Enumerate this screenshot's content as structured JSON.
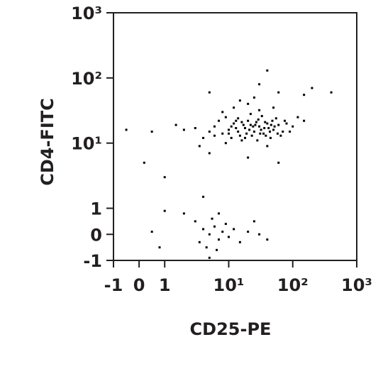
{
  "chart_data": {
    "type": "scatter",
    "x_label": "CD25-PE",
    "y_label": "CD4-FITC",
    "scale": "biexponential",
    "color": "#000000",
    "x": [
      5,
      6,
      8,
      10,
      12,
      15,
      18,
      20,
      25,
      30,
      35,
      40,
      50,
      60,
      4,
      7,
      9,
      11,
      14,
      16,
      22,
      28,
      33,
      45,
      55,
      70,
      3,
      6,
      13,
      17,
      19,
      24,
      27,
      32,
      38,
      42,
      48,
      65,
      80,
      100,
      120,
      150,
      2,
      1.5,
      3.5,
      8,
      12,
      20,
      30,
      40,
      25,
      15,
      50,
      9,
      11,
      14,
      16,
      21,
      23,
      26,
      29,
      36,
      44,
      52,
      10,
      13,
      18,
      22,
      31,
      37,
      46,
      58,
      75,
      90,
      0.5,
      -0.5,
      0.2,
      1,
      5,
      30,
      40,
      60,
      150,
      200,
      400,
      5,
      20,
      60,
      0.8,
      3,
      4,
      5,
      6,
      7,
      4.5,
      5.5,
      8,
      10,
      3.5,
      2,
      6.5,
      9,
      12,
      15,
      20,
      30,
      40,
      1,
      0.5,
      5,
      7,
      25,
      4
    ],
    "values": [
      15,
      18,
      14,
      16,
      20,
      13,
      17,
      22,
      15,
      18,
      14,
      20,
      16,
      19,
      12,
      22,
      25,
      12,
      24,
      11,
      28,
      11,
      26,
      12,
      24,
      15,
      17,
      13,
      17,
      19,
      14,
      18,
      21,
      16,
      13,
      17,
      22,
      13,
      20,
      18,
      25,
      22,
      16,
      19,
      9,
      30,
      35,
      40,
      32,
      9,
      50,
      45,
      35,
      10,
      18,
      15,
      21,
      16,
      13,
      19,
      23,
      17,
      15,
      18,
      14,
      22,
      12,
      19,
      14,
      21,
      19,
      14,
      22,
      15,
      15,
      16,
      5,
      3,
      60,
      80,
      130,
      60,
      55,
      70,
      60,
      7,
      6,
      5,
      -0.5,
      0.5,
      0.2,
      0,
      0.3,
      -0.2,
      -0.5,
      0.6,
      0.1,
      -0.1,
      -0.3,
      0.8,
      -0.6,
      0.4,
      0.2,
      -0.3,
      0.1,
      0,
      -0.2,
      0.9,
      0.1,
      -0.9,
      0.8,
      0.5,
      1.5
    ],
    "xlim": [
      -1,
      1000
    ],
    "ylim": [
      -1,
      1000
    ],
    "xticks": [
      -1,
      0,
      1,
      {
        "value": 10,
        "label": "10¹"
      },
      {
        "value": 100,
        "label": "10²"
      },
      {
        "value": 1000,
        "label": "10³"
      }
    ],
    "yticks": [
      -1,
      0,
      1,
      {
        "value": 10,
        "label": "10¹"
      },
      {
        "value": 100,
        "label": "10²"
      },
      {
        "value": 1000,
        "label": "10³"
      }
    ]
  }
}
